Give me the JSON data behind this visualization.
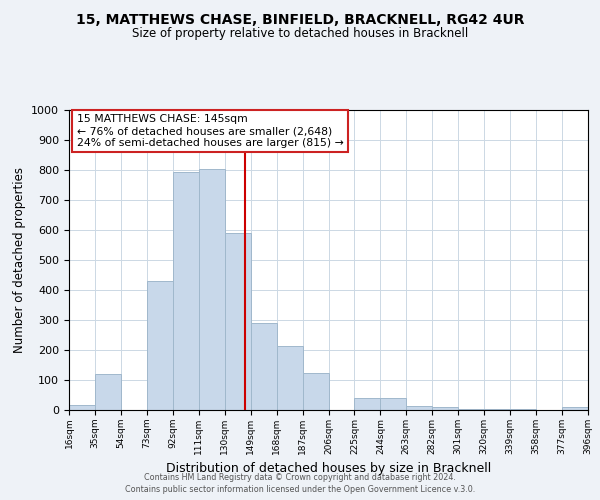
{
  "title_line1": "15, MATTHEWS CHASE, BINFIELD, BRACKNELL, RG42 4UR",
  "title_line2": "Size of property relative to detached houses in Bracknell",
  "xlabel": "Distribution of detached houses by size in Bracknell",
  "ylabel": "Number of detached properties",
  "bar_left_edges": [
    16,
    35,
    54,
    73,
    92,
    111,
    130,
    149,
    168,
    187,
    206,
    225,
    244,
    263,
    282,
    301,
    320,
    339,
    358,
    377
  ],
  "bar_heights": [
    18,
    120,
    0,
    430,
    795,
    805,
    590,
    290,
    215,
    125,
    0,
    40,
    40,
    15,
    10,
    5,
    5,
    5,
    0,
    10
  ],
  "bar_color": "#c8d8ea",
  "bar_edgecolor": "#a0b8cc",
  "vline_x": 145,
  "vline_color": "#cc0000",
  "xlim": [
    16,
    396
  ],
  "ylim": [
    0,
    1000
  ],
  "yticks": [
    0,
    100,
    200,
    300,
    400,
    500,
    600,
    700,
    800,
    900,
    1000
  ],
  "xtick_labels": [
    "16sqm",
    "35sqm",
    "54sqm",
    "73sqm",
    "92sqm",
    "111sqm",
    "130sqm",
    "149sqm",
    "168sqm",
    "187sqm",
    "206sqm",
    "225sqm",
    "244sqm",
    "263sqm",
    "282sqm",
    "301sqm",
    "320sqm",
    "339sqm",
    "358sqm",
    "377sqm",
    "396sqm"
  ],
  "xtick_positions": [
    16,
    35,
    54,
    73,
    92,
    111,
    130,
    149,
    168,
    187,
    206,
    225,
    244,
    263,
    282,
    301,
    320,
    339,
    358,
    377,
    396
  ],
  "annotation_title": "15 MATTHEWS CHASE: 145sqm",
  "annotation_line1": "← 76% of detached houses are smaller (2,648)",
  "annotation_line2": "24% of semi-detached houses are larger (815) →",
  "footer_line1": "Contains HM Land Registry data © Crown copyright and database right 2024.",
  "footer_line2": "Contains public sector information licensed under the Open Government Licence v.3.0.",
  "background_color": "#eef2f7",
  "plot_background": "#ffffff",
  "grid_color": "#ccd8e4"
}
